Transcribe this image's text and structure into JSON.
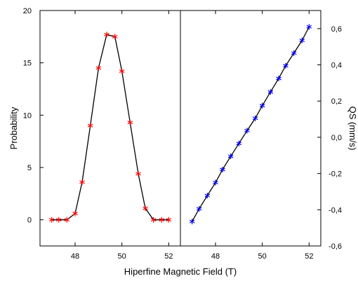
{
  "chart_data": [
    {
      "type": "line",
      "panel": "left",
      "xlabel": "Hiperfine Magnetic Field (T)",
      "ylabel": "Probability",
      "xlim": [
        46.5,
        52.5
      ],
      "ylim": [
        -2.5,
        20
      ],
      "x_ticks": [
        48,
        50,
        52
      ],
      "x_tick_labels": [
        "48",
        "50",
        "52"
      ],
      "y_ticks": [
        0,
        5,
        10,
        15,
        20
      ],
      "y_tick_labels": [
        "0",
        "5",
        "10",
        "15",
        "20"
      ],
      "marker": "asterisk",
      "series": [
        {
          "color": "#ff0000",
          "x": [
            47.0,
            47.3,
            47.65,
            48.0,
            48.3,
            48.65,
            49.0,
            49.35,
            49.7,
            50.0,
            50.35,
            50.7,
            51.0,
            51.35,
            51.7,
            52.0
          ],
          "y": [
            0.0,
            0.0,
            0.0,
            0.6,
            3.6,
            9.0,
            14.5,
            17.7,
            17.5,
            14.2,
            9.3,
            4.4,
            1.1,
            0.0,
            0.0,
            0.0
          ]
        }
      ]
    },
    {
      "type": "line",
      "panel": "right",
      "xlabel": "Hiperfine Magnetic Field (T)",
      "ylabel": "QS (mm/s)",
      "xlim": [
        46.5,
        52.5
      ],
      "ylim": [
        -0.6,
        0.7
      ],
      "x_ticks": [
        48,
        50,
        52
      ],
      "x_tick_labels": [
        "48",
        "50",
        "52"
      ],
      "y_ticks": [
        -0.6,
        -0.4,
        -0.2,
        0.0,
        0.2,
        0.4,
        0.6
      ],
      "y_tick_labels": [
        "-0,6",
        "-0,4",
        "-0,2",
        "0,0",
        "0,2",
        "0,4",
        "0,6"
      ],
      "marker": "asterisk",
      "series": [
        {
          "color": "#0000ff",
          "x": [
            47.0,
            47.3,
            47.65,
            48.0,
            48.3,
            48.65,
            49.0,
            49.35,
            49.7,
            50.0,
            50.35,
            50.7,
            51.0,
            51.35,
            51.7,
            52.0
          ],
          "y": [
            -0.465,
            -0.395,
            -0.322,
            -0.25,
            -0.178,
            -0.105,
            -0.034,
            0.037,
            0.105,
            0.175,
            0.25,
            0.325,
            0.395,
            0.465,
            0.535,
            0.61
          ]
        }
      ]
    }
  ]
}
